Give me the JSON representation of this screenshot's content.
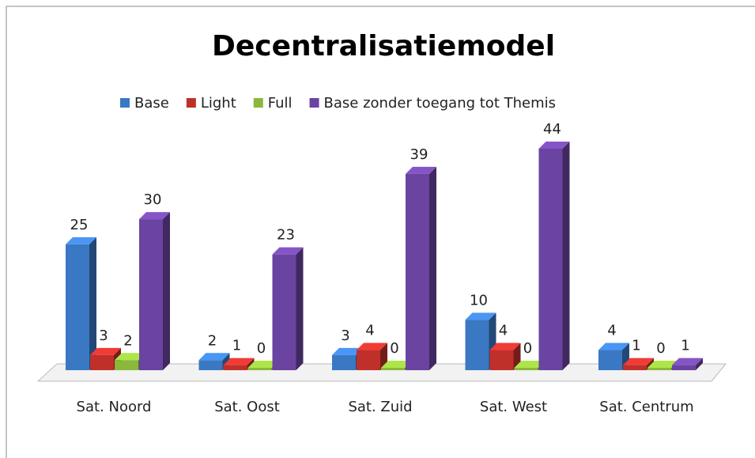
{
  "chart_data": {
    "type": "bar",
    "title": "Decentralisatiemodel",
    "categories": [
      "Sat. Noord",
      "Sat. Oost",
      "Sat. Zuid",
      "Sat. West",
      "Sat. Centrum"
    ],
    "series": [
      {
        "name": "Base",
        "color": "#3a78c4",
        "values": [
          25,
          2,
          3,
          10,
          4
        ]
      },
      {
        "name": "Light",
        "color": "#c0302a",
        "values": [
          3,
          1,
          4,
          4,
          1
        ]
      },
      {
        "name": "Full",
        "color": "#8ab83a",
        "values": [
          2,
          0,
          0,
          0,
          0
        ]
      },
      {
        "name": "Base zonder toegang tot Themis",
        "color": "#6a44a0",
        "values": [
          30,
          23,
          39,
          44,
          1
        ]
      }
    ],
    "legend": "top"
  }
}
